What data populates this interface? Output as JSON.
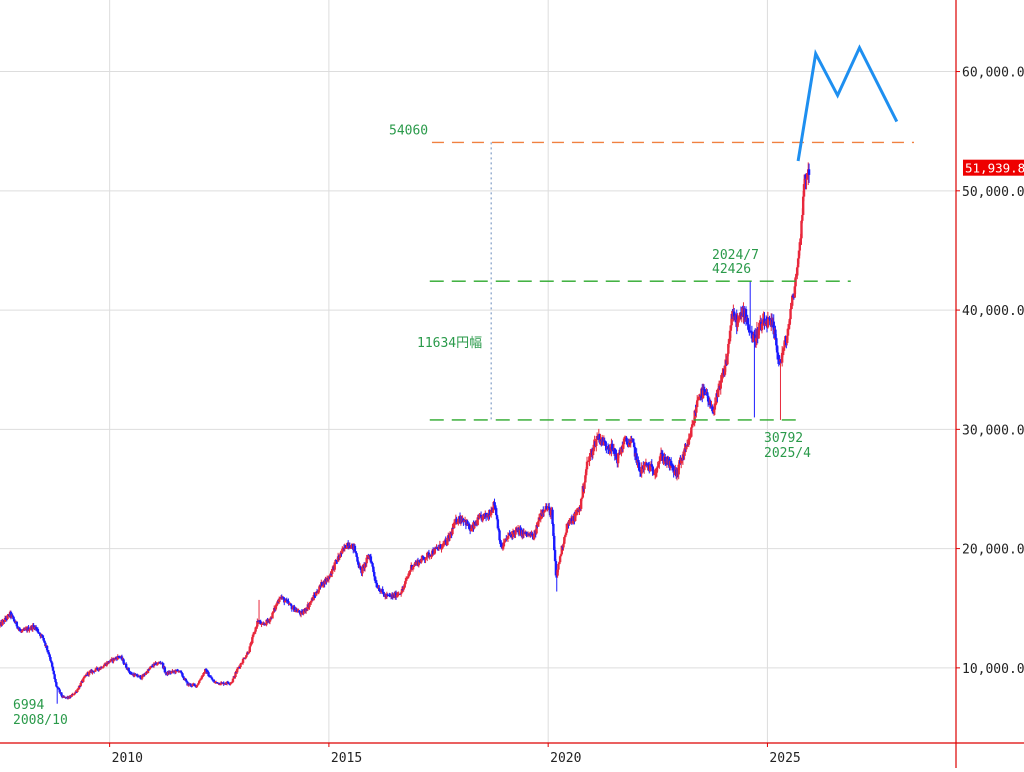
{
  "chart_data": {
    "type": "candlestick",
    "x": {
      "start": 2007.5,
      "end": 2029.3,
      "ticks": [
        {
          "value": 2010,
          "label": "2010"
        },
        {
          "value": 2015,
          "label": "2015"
        },
        {
          "value": 2020,
          "label": "2020"
        },
        {
          "value": 2025,
          "label": "2025"
        }
      ]
    },
    "y": {
      "min": 3700,
      "max": 66000,
      "ticks": [
        {
          "value": 10000,
          "label": "10,000.00"
        },
        {
          "value": 20000,
          "label": "20,000.00"
        },
        {
          "value": 30000,
          "label": "30,000.00"
        },
        {
          "value": 40000,
          "label": "40,000.00"
        },
        {
          "value": 50000,
          "label": "50,000.00"
        },
        {
          "value": 60000,
          "label": "60,000.00"
        }
      ]
    },
    "grid": true,
    "current_price": {
      "value": 51939.8,
      "label": "51,939.8"
    },
    "price_path": [
      [
        2007.5,
        13500
      ],
      [
        2007.75,
        14500
      ],
      [
        2008.0,
        13000
      ],
      [
        2008.3,
        13500
      ],
      [
        2008.5,
        12500
      ],
      [
        2008.65,
        11000
      ],
      [
        2008.8,
        8500
      ],
      [
        2008.95,
        7500
      ],
      [
        2009.1,
        7500
      ],
      [
        2009.25,
        8000
      ],
      [
        2009.5,
        9500
      ],
      [
        2009.8,
        10000
      ],
      [
        2010.0,
        10500
      ],
      [
        2010.25,
        11000
      ],
      [
        2010.5,
        9500
      ],
      [
        2010.75,
        9200
      ],
      [
        2011.0,
        10200
      ],
      [
        2011.2,
        10500
      ],
      [
        2011.3,
        9500
      ],
      [
        2011.6,
        9800
      ],
      [
        2011.8,
        8600
      ],
      [
        2012.0,
        8500
      ],
      [
        2012.2,
        9800
      ],
      [
        2012.4,
        8800
      ],
      [
        2012.6,
        8700
      ],
      [
        2012.8,
        8800
      ],
      [
        2012.95,
        10000
      ],
      [
        2013.2,
        11500
      ],
      [
        2013.4,
        14000
      ],
      [
        2013.5,
        13500
      ],
      [
        2013.7,
        14200
      ],
      [
        2013.9,
        16000
      ],
      [
        2014.2,
        15000
      ],
      [
        2014.4,
        14500
      ],
      [
        2014.6,
        15500
      ],
      [
        2014.85,
        17000
      ],
      [
        2015.0,
        17500
      ],
      [
        2015.2,
        19000
      ],
      [
        2015.45,
        20500
      ],
      [
        2015.6,
        20000
      ],
      [
        2015.75,
        18000
      ],
      [
        2015.95,
        19500
      ],
      [
        2016.1,
        17000
      ],
      [
        2016.3,
        16000
      ],
      [
        2016.5,
        16000
      ],
      [
        2016.7,
        16500
      ],
      [
        2016.9,
        18500
      ],
      [
        2017.1,
        19000
      ],
      [
        2017.3,
        19500
      ],
      [
        2017.5,
        20000
      ],
      [
        2017.7,
        20500
      ],
      [
        2017.95,
        22500
      ],
      [
        2018.1,
        22500
      ],
      [
        2018.25,
        21500
      ],
      [
        2018.45,
        22500
      ],
      [
        2018.65,
        22800
      ],
      [
        2018.8,
        23800
      ],
      [
        2018.95,
        20000
      ],
      [
        2019.1,
        21000
      ],
      [
        2019.3,
        21500
      ],
      [
        2019.5,
        21200
      ],
      [
        2019.7,
        21000
      ],
      [
        2019.85,
        23000
      ],
      [
        2019.95,
        23500
      ],
      [
        2020.1,
        23000
      ],
      [
        2020.2,
        17500
      ],
      [
        2020.3,
        19500
      ],
      [
        2020.45,
        22000
      ],
      [
        2020.6,
        22500
      ],
      [
        2020.75,
        23500
      ],
      [
        2020.9,
        27000
      ],
      [
        2021.05,
        28500
      ],
      [
        2021.15,
        29500
      ],
      [
        2021.3,
        28800
      ],
      [
        2021.45,
        28500
      ],
      [
        2021.6,
        27500
      ],
      [
        2021.75,
        29000
      ],
      [
        2021.95,
        28800
      ],
      [
        2022.1,
        26500
      ],
      [
        2022.25,
        27000
      ],
      [
        2022.45,
        26500
      ],
      [
        2022.6,
        27800
      ],
      [
        2022.8,
        27000
      ],
      [
        2022.95,
        26200
      ],
      [
        2023.05,
        27500
      ],
      [
        2023.2,
        28500
      ],
      [
        2023.35,
        31000
      ],
      [
        2023.45,
        33000
      ],
      [
        2023.6,
        33000
      ],
      [
        2023.75,
        31500
      ],
      [
        2023.9,
        33000
      ],
      [
        2024.0,
        34500
      ],
      [
        2024.1,
        36000
      ],
      [
        2024.2,
        39500
      ],
      [
        2024.35,
        39000
      ],
      [
        2024.5,
        40000
      ],
      [
        2024.6,
        38500
      ],
      [
        2024.7,
        37500
      ],
      [
        2024.85,
        38500
      ],
      [
        2025.0,
        39000
      ],
      [
        2025.15,
        38500
      ],
      [
        2025.3,
        35500
      ],
      [
        2025.45,
        37500
      ],
      [
        2025.6,
        41000
      ],
      [
        2025.75,
        45000
      ],
      [
        2025.85,
        50500
      ],
      [
        2025.95,
        51939.8
      ]
    ],
    "wicks": [
      {
        "date": 2008.8,
        "low": 6994
      },
      {
        "date": 2013.4,
        "high": 15700
      },
      {
        "date": 2020.2,
        "low": 16400
      },
      {
        "date": 2024.6,
        "high": 42426
      },
      {
        "date": 2024.7,
        "low": 31000
      },
      {
        "date": 2025.3,
        "low": 30792
      }
    ],
    "forecast": [
      [
        2025.7,
        52500
      ],
      [
        2026.1,
        61500
      ],
      [
        2026.6,
        58000
      ],
      [
        2027.1,
        62000
      ],
      [
        2027.95,
        55800
      ]
    ],
    "levels": [
      {
        "value": 54060,
        "from": 2017.3,
        "to": 2029.3,
        "kind": "resistance",
        "label": "54060"
      },
      {
        "value": 42426,
        "from": 2017.3,
        "to": 2026.9,
        "kind": "high",
        "label_lines": [
          "2024/7",
          "42426"
        ]
      },
      {
        "value": 30792,
        "from": 2017.3,
        "to": 2025.7,
        "kind": "low",
        "label_lines": [
          "30792",
          "2025/4"
        ]
      }
    ],
    "range_annotation": {
      "date": 2018.7,
      "from": 30792,
      "to": 54060,
      "label": "11634円幅"
    },
    "low_annotation": {
      "label_lines": [
        "6994",
        "2008/10"
      ]
    }
  },
  "colors": {
    "up": "#e8283c",
    "down": "#1a1aff",
    "axis": "#dd0000",
    "grid": "#dddddd",
    "resistance": "#f08040",
    "level": "#2aa82a",
    "annotation_text": "#2a9a4a",
    "forecast": "#1e8ff0",
    "range_line": "#6688bb",
    "price_badge_bg": "#ee0000",
    "price_badge_text": "#ffffff"
  }
}
